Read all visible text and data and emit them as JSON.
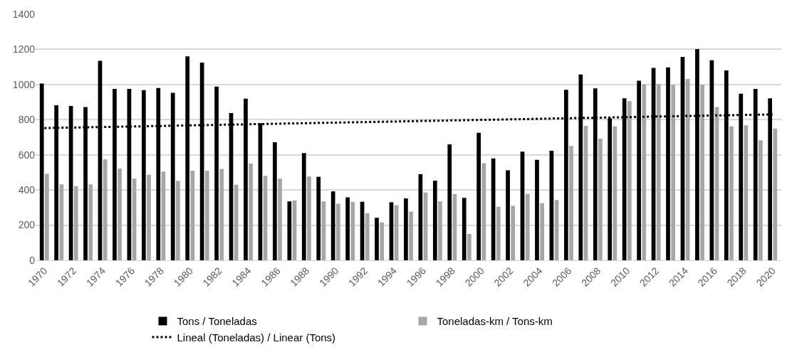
{
  "chart_data": {
    "type": "bar",
    "categories": [
      "1970",
      null,
      "1972",
      null,
      "1974",
      null,
      "1976",
      null,
      "1978",
      null,
      "1980",
      null,
      "1982",
      null,
      "1984",
      null,
      "1986",
      null,
      "1988",
      null,
      "1990",
      null,
      "1992",
      null,
      "1994",
      null,
      "1996",
      null,
      "1998",
      null,
      "2000",
      null,
      "2002",
      null,
      "2004",
      null,
      "2006",
      null,
      "2008",
      null,
      "2010",
      null,
      "2012",
      null,
      "2014",
      null,
      "2016",
      null,
      "2018",
      null,
      "2020"
    ],
    "series": [
      {
        "name": "Tons / Toneladas",
        "color": "#000000",
        "values": [
          1005,
          882,
          878,
          872,
          1135,
          975,
          975,
          968,
          980,
          953,
          1160,
          1125,
          988,
          838,
          920,
          780,
          672,
          335,
          610,
          475,
          392,
          358,
          333,
          242,
          330,
          352,
          490,
          453,
          660,
          355,
          725,
          580,
          512,
          618,
          572,
          623,
          970,
          1057,
          978,
          808,
          922,
          1022,
          1095,
          1098,
          1157,
          1202,
          1138,
          1080,
          948,
          975,
          922
        ]
      },
      {
        "name": "Toneladas-km / Tons-km",
        "color": "#a6a6a6",
        "values": [
          492,
          432,
          422,
          432,
          575,
          522,
          465,
          487,
          505,
          452,
          510,
          510,
          520,
          430,
          550,
          480,
          465,
          340,
          477,
          335,
          322,
          332,
          268,
          215,
          313,
          277,
          385,
          335,
          377,
          150,
          552,
          305,
          310,
          378,
          325,
          343,
          650,
          765,
          692,
          762,
          905,
          1000,
          1002,
          997,
          1032,
          998,
          872,
          762,
          768,
          683,
          750
        ]
      },
      {
        "name": "Lineal (Toneladas) / Linear (Tons)",
        "type": "line",
        "line_style": "dotted",
        "color": "#000000",
        "values": [
          752,
          754,
          755,
          757,
          758,
          760,
          761,
          763,
          764,
          766,
          768,
          769,
          771,
          772,
          774,
          775,
          777,
          779,
          780,
          782,
          783,
          785,
          786,
          788,
          789,
          791,
          793,
          794,
          796,
          797,
          799,
          800,
          802,
          803,
          805,
          807,
          808,
          810,
          811,
          813,
          814,
          816,
          818,
          819,
          821,
          822,
          824,
          825,
          827,
          828,
          830
        ]
      }
    ],
    "ylim": [
      0,
      1400
    ],
    "yticks": [
      0,
      200,
      400,
      600,
      800,
      1000,
      1200,
      1400
    ],
    "grid": "y",
    "legend": "bottom"
  }
}
